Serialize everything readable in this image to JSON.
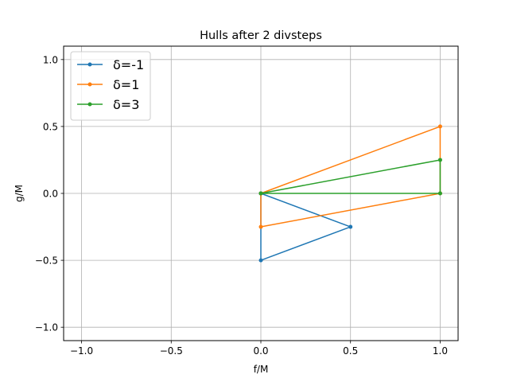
{
  "chart_data": {
    "type": "line",
    "title": "Hulls after 2 divsteps",
    "xlabel": "f/M",
    "ylabel": "g/M",
    "xlim": [
      -1.1,
      1.1
    ],
    "ylim": [
      -1.1,
      1.1
    ],
    "xticks": [
      -1.0,
      -0.5,
      0.0,
      0.5,
      1.0
    ],
    "xtick_labels": [
      "−1.0",
      "−0.5",
      "0.0",
      "0.5",
      "1.0"
    ],
    "yticks": [
      -1.0,
      -0.5,
      0.0,
      0.5,
      1.0
    ],
    "ytick_labels": [
      "−1.0",
      "−0.5",
      "0.0",
      "0.5",
      "1.0"
    ],
    "grid": true,
    "legend_position": "top-left",
    "series": [
      {
        "name": "δ=-1",
        "color": "#1f77b4",
        "points": [
          [
            0.0,
            0.0
          ],
          [
            0.5,
            -0.25
          ],
          [
            0.0,
            -0.5
          ],
          [
            0.0,
            0.0
          ]
        ]
      },
      {
        "name": "δ=1",
        "color": "#ff7f0e",
        "points": [
          [
            0.0,
            0.0
          ],
          [
            1.0,
            0.5
          ],
          [
            1.0,
            0.0
          ],
          [
            0.0,
            -0.25
          ],
          [
            0.0,
            0.0
          ]
        ]
      },
      {
        "name": "δ=3",
        "color": "#2ca02c",
        "points": [
          [
            0.0,
            0.0
          ],
          [
            1.0,
            0.25
          ],
          [
            1.0,
            0.0
          ],
          [
            0.0,
            0.0
          ]
        ]
      }
    ]
  }
}
